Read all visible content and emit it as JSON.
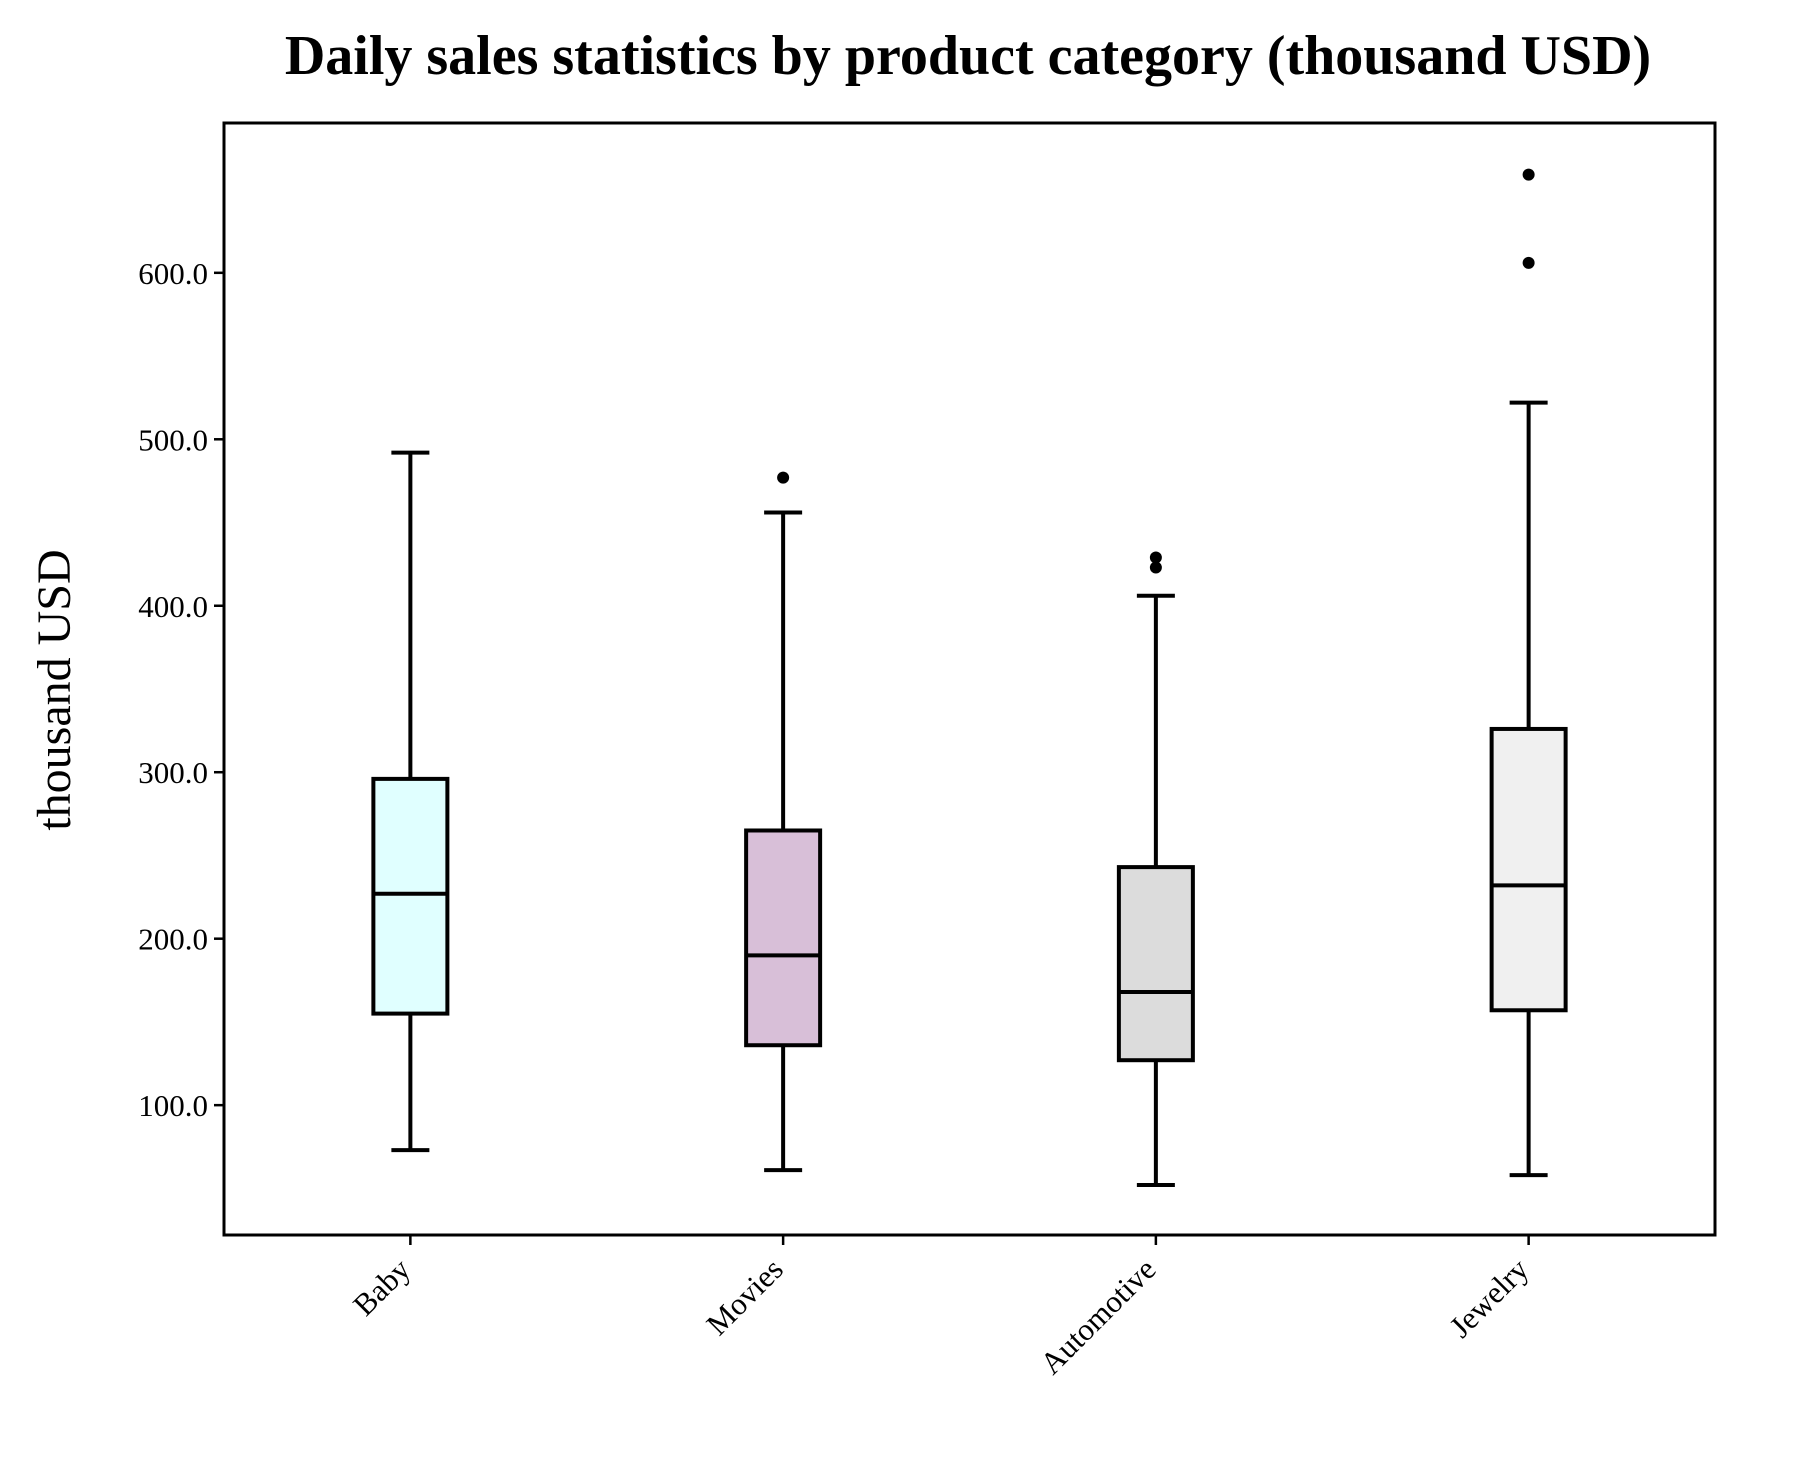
{
  "chart_data": {
    "type": "box",
    "title": "Daily sales statistics by product category (thousand USD)",
    "xlabel": "",
    "ylabel": "thousand USD",
    "ylim": [
      22,
      690
    ],
    "yticks": [
      100,
      200,
      300,
      400,
      500,
      600
    ],
    "ytick_labels": [
      "100.0",
      "200.0",
      "300.0",
      "400.0",
      "500.0",
      "600.0"
    ],
    "grid": false,
    "categories": [
      "Baby",
      "Movies",
      "Automotive",
      "Jewelry"
    ],
    "boxes": [
      {
        "category": "Baby",
        "whisker_low": 73,
        "q1": 155,
        "median": 227,
        "q3": 296,
        "whisker_high": 492,
        "outliers": [],
        "color": "#e0ffff"
      },
      {
        "category": "Movies",
        "whisker_low": 61,
        "q1": 136,
        "median": 190,
        "q3": 265,
        "whisker_high": 456,
        "outliers": [
          477
        ],
        "color": "#d8bfd8"
      },
      {
        "category": "Automotive",
        "whisker_low": 52,
        "q1": 127,
        "median": 168,
        "q3": 243,
        "whisker_high": 406,
        "outliers": [
          423,
          429
        ],
        "color": "#dcdcdc"
      },
      {
        "category": "Jewelry",
        "whisker_low": 58,
        "q1": 157,
        "median": 232,
        "q3": 326,
        "whisker_high": 522,
        "outliers": [
          606,
          659
        ],
        "color": "#f0f0f0"
      }
    ]
  }
}
